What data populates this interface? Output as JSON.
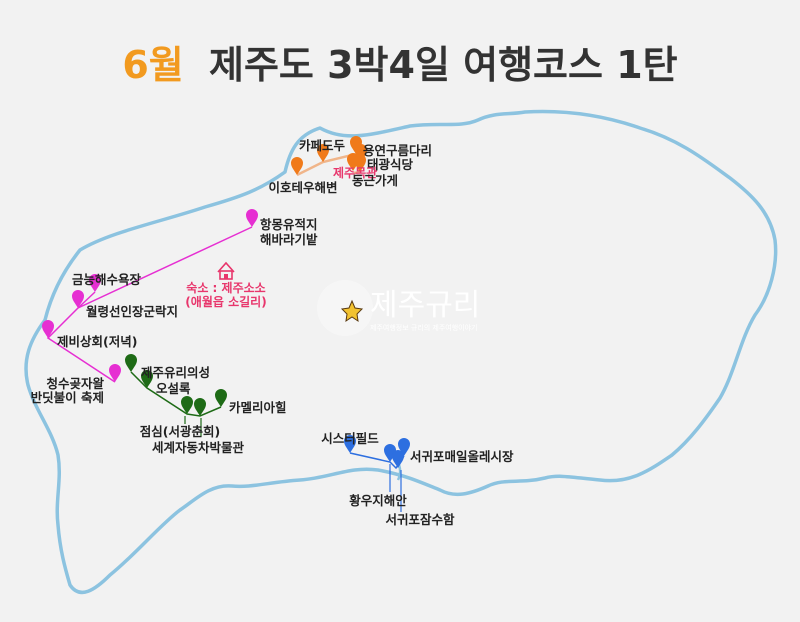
{
  "title": {
    "highlight": "6월",
    "rest": "제주도 3박4일 여행코스 1탄"
  },
  "colors": {
    "highlight": "#f29a1f",
    "title": "#333333",
    "coast": "#8cc3e0",
    "orange": "#f07a1a",
    "magenta": "#e62fd2",
    "green": "#1e6b16",
    "blue": "#2d6fe0",
    "pink_text": "#e8366c"
  },
  "labels": {
    "cafe": "카페도두",
    "yongyeon": "용연구름다리",
    "taegwang": "태광식당",
    "jejumok": "제주목관",
    "donggun": "동근가게",
    "iho": "이호테우해변",
    "hangmong": "항몽유적지",
    "haebaragi": "해바라기밭",
    "geumneung": "금능해수욕장",
    "wolryeong": "월령선인장군락지",
    "jebi": "제비상회(저녁)",
    "cheongsu_1": "청수곶자왈",
    "cheongsu_2": "반딧불이 축제",
    "yuri": "제주유리의성",
    "osulloc": "오설록",
    "camellia": "카멜리아힐",
    "lunch": "점심(서광춘희)",
    "auto": "세계자동차박물관",
    "sister": "시스터필드",
    "market": "서귀포매일올레시장",
    "hwangu": "황우지해안",
    "aquarium": "서귀포잠수함",
    "stay_1": "숙소 : 제주소소",
    "stay_2": "(애월읍 소길리)"
  },
  "icons": {
    "pin": "map-pin-icon",
    "house": "house-icon",
    "star": "star-icon"
  },
  "watermark": {
    "text": "제주규리",
    "sub": "제주여행정보 규리의 제주여행이야기"
  }
}
